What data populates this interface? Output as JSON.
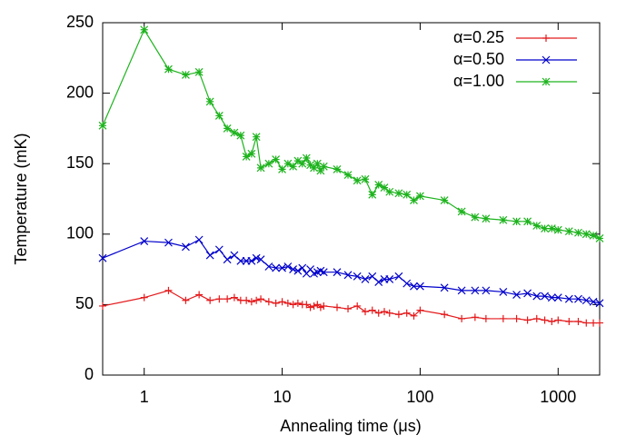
{
  "chart_data": {
    "type": "line",
    "x_label": "Annealing time (μs)",
    "y_label": "Temperature (mK)",
    "xlog": true,
    "xlim": [
      0.5,
      2000
    ],
    "xticks": [
      1,
      10,
      100,
      1000
    ],
    "ylim": [
      0,
      250
    ],
    "yticks": [
      0,
      50,
      100,
      150,
      200,
      250
    ],
    "legend": "top-right",
    "x": [
      0.5,
      1,
      1.5,
      2,
      2.5,
      3,
      3.5,
      4,
      4.5,
      5,
      5.5,
      6,
      6.5,
      7,
      8,
      9,
      10,
      11,
      12,
      13,
      14,
      15,
      16,
      17,
      18,
      19,
      20,
      25,
      30,
      35,
      40,
      45,
      50,
      55,
      60,
      70,
      80,
      90,
      100,
      150,
      200,
      250,
      300,
      400,
      500,
      600,
      700,
      800,
      900,
      1000,
      1200,
      1400,
      1600,
      1800,
      2000
    ],
    "series": [
      {
        "name": "α=0.25",
        "color": "#e41a1c",
        "marker": "plus",
        "values": [
          49,
          55,
          60,
          53,
          57,
          53,
          54,
          54,
          55,
          53,
          53,
          52,
          53,
          54,
          52,
          51,
          52,
          51,
          50,
          51,
          50,
          50,
          48,
          49,
          50,
          48,
          49,
          48,
          47,
          49,
          45,
          46,
          44,
          45,
          44,
          43,
          44,
          42,
          46,
          43,
          40,
          41,
          40,
          40,
          40,
          39,
          40,
          39,
          38,
          39,
          38,
          38,
          37,
          37,
          37
        ]
      },
      {
        "name": "α=0.50",
        "color": "#0000cc",
        "marker": "cross",
        "values": [
          83,
          95,
          94,
          91,
          96,
          85,
          89,
          82,
          85,
          81,
          81,
          81,
          83,
          82,
          77,
          76,
          76,
          77,
          75,
          74,
          76,
          72,
          75,
          72,
          73,
          74,
          73,
          73,
          71,
          70,
          68,
          70,
          66,
          68,
          68,
          70,
          65,
          63,
          63,
          62,
          60,
          60,
          60,
          59,
          57,
          58,
          56,
          56,
          55,
          55,
          54,
          54,
          53,
          52,
          51
        ]
      },
      {
        "name": "α=1.00",
        "color": "#1db31d",
        "marker": "star",
        "values": [
          177,
          245,
          217,
          213,
          215,
          194,
          184,
          175,
          172,
          170,
          155,
          157,
          169,
          147,
          150,
          153,
          146,
          150,
          148,
          152,
          150,
          154,
          149,
          147,
          150,
          145,
          148,
          146,
          142,
          138,
          139,
          128,
          135,
          133,
          130,
          129,
          128,
          124,
          127,
          124,
          116,
          112,
          111,
          110,
          109,
          109,
          106,
          104,
          104,
          103,
          102,
          101,
          100,
          99,
          97
        ]
      }
    ]
  }
}
